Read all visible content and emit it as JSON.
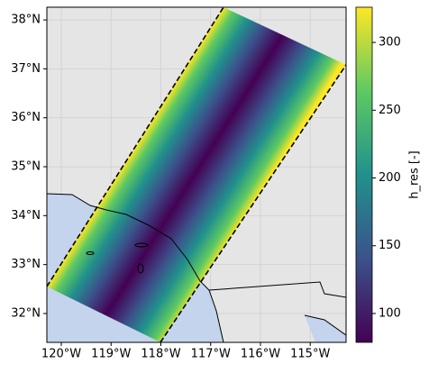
{
  "chart_data": {
    "type": "map",
    "grid": true,
    "colormap": "viridis",
    "xlim": [
      -120.29,
      -114.28
    ],
    "ylim": [
      31.41,
      38.26
    ],
    "xticks": [
      {
        "value": -120,
        "label": "120°W"
      },
      {
        "value": -119,
        "label": "119°W"
      },
      {
        "value": -118,
        "label": "118°W"
      },
      {
        "value": -117,
        "label": "117°W"
      },
      {
        "value": -116,
        "label": "116°W"
      },
      {
        "value": -115,
        "label": "115°W"
      }
    ],
    "yticks": [
      {
        "value": 32,
        "label": "32°N"
      },
      {
        "value": 33,
        "label": "33°N"
      },
      {
        "value": 34,
        "label": "34°N"
      },
      {
        "value": 35,
        "label": "35°N"
      },
      {
        "value": 36,
        "label": "36°N"
      },
      {
        "value": 37,
        "label": "37°N"
      },
      {
        "value": 38,
        "label": "38°N"
      }
    ],
    "colorbar": {
      "label": "h_res [-]",
      "lim": [
        78.7,
        326
      ],
      "ticks": [
        100,
        150,
        200,
        250,
        300
      ]
    }
  }
}
